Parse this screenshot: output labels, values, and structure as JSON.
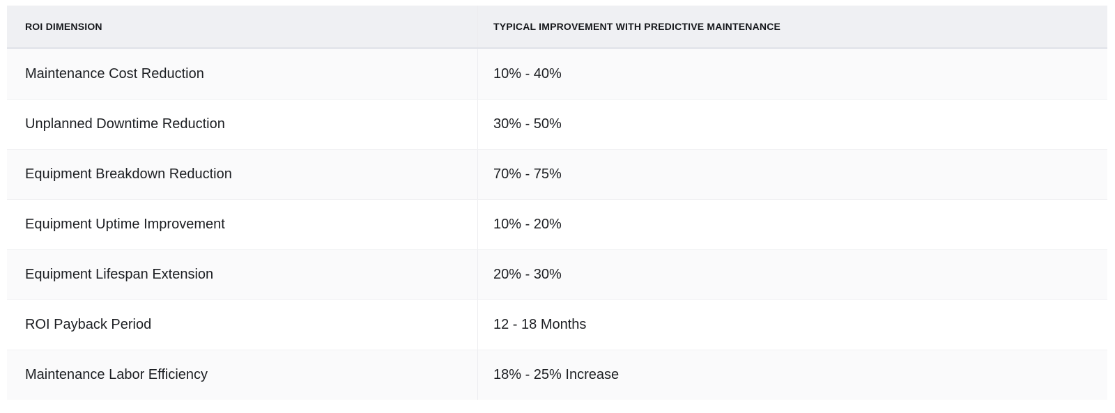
{
  "table": {
    "columns": [
      {
        "label": "ROI DIMENSION"
      },
      {
        "label": "TYPICAL IMPROVEMENT WITH PREDICTIVE MAINTENANCE"
      }
    ],
    "rows": [
      {
        "dimension": "Maintenance Cost Reduction",
        "improvement": "10% - 40%"
      },
      {
        "dimension": "Unplanned Downtime Reduction",
        "improvement": "30% - 50%"
      },
      {
        "dimension": "Equipment Breakdown Reduction",
        "improvement": "70% - 75%"
      },
      {
        "dimension": "Equipment Uptime Improvement",
        "improvement": "10% - 20%"
      },
      {
        "dimension": "Equipment Lifespan Extension",
        "improvement": "20% - 30%"
      },
      {
        "dimension": "ROI Payback Period",
        "improvement": "12 - 18 Months"
      },
      {
        "dimension": "Maintenance Labor Efficiency",
        "improvement": "18% - 25% Increase"
      }
    ]
  },
  "colors": {
    "header_background": "#eff0f3",
    "header_border": "#dfe2e8",
    "row_alt_background": "#fafafb",
    "row_background": "#ffffff",
    "divider": "#ececef",
    "text": "#1c1e22"
  }
}
